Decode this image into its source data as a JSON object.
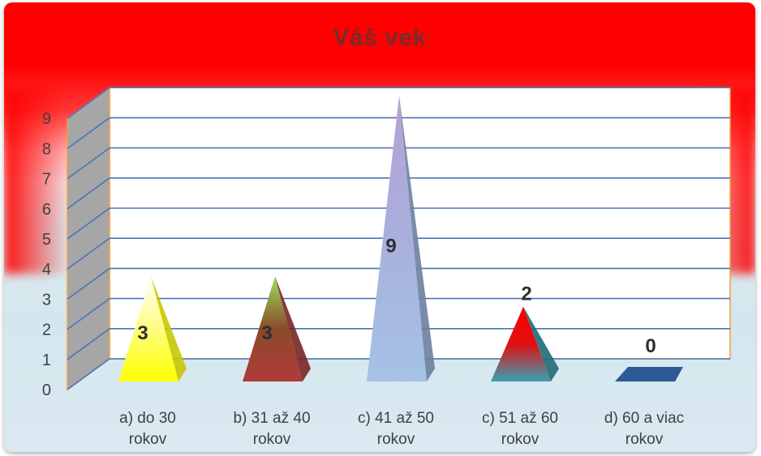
{
  "chart_data": {
    "type": "bar",
    "title": "Váš vek",
    "categories": [
      [
        "a) do 30",
        "rokov"
      ],
      [
        "b) 31 až 40",
        "rokov"
      ],
      [
        "c) 41 až 50",
        "rokov"
      ],
      [
        "c) 51 až 60",
        "rokov"
      ],
      [
        "d) 60 a viac",
        "rokov"
      ]
    ],
    "values": [
      3,
      3,
      9,
      2,
      0
    ],
    "data_labels": [
      "3",
      "3",
      "9",
      "2",
      "0"
    ],
    "ylim": [
      0,
      9
    ],
    "yticks": [
      "0",
      "1",
      "2",
      "3",
      "4",
      "5",
      "6",
      "7",
      "8",
      "9"
    ],
    "grid": true,
    "legend": "none",
    "colors": {
      "gridline": "#4a74b8",
      "plot_border": "#f0a040",
      "side_wall": "#a6a6a6",
      "bars": [
        {
          "top": "#ffffff",
          "mid": "#fdfd80",
          "bottom": "#ffff00",
          "side": "#c8c800"
        },
        {
          "top": "#9be05a",
          "mid": "#8a4a2a",
          "bottom": "#b03a3a",
          "side": "#7a2525"
        },
        {
          "top": "#b6a0d8",
          "mid": "#a8b0dc",
          "bottom": "#a6c2e6",
          "side": "#6a7fa0"
        },
        {
          "top": "#ff0000",
          "mid": "#e01010",
          "bottom": "#3aa0b4",
          "side": "#1f6a78"
        },
        {
          "top": "#2d5a96",
          "mid": "#2d5a96",
          "bottom": "#2d5a96",
          "side": "#1f4270"
        }
      ]
    }
  }
}
